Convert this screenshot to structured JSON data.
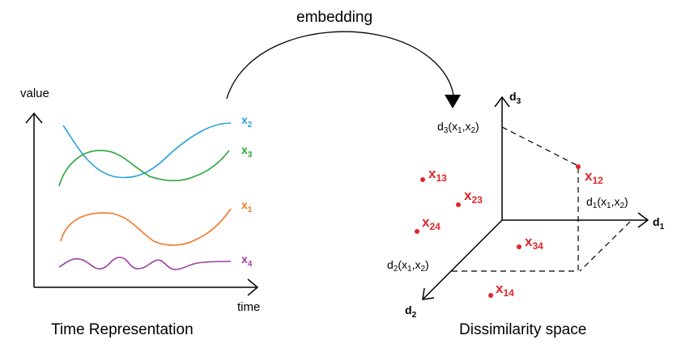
{
  "time_panel": {
    "y_axis_label": "value",
    "x_axis_label": "time",
    "caption": "Time Representation",
    "series": [
      {
        "name": "x",
        "sub": "2",
        "color": "#29a3dd"
      },
      {
        "name": "x",
        "sub": "3",
        "color": "#2aa63c"
      },
      {
        "name": "x",
        "sub": "1",
        "color": "#f4782a"
      },
      {
        "name": "x",
        "sub": "4",
        "color": "#9b3fa0"
      }
    ]
  },
  "arrow_label": "embedding",
  "space_panel": {
    "caption": "Dissimilarity space",
    "axes": [
      {
        "base": "d",
        "sub": "3"
      },
      {
        "base": "d",
        "sub": "1"
      },
      {
        "base": "d",
        "sub": "2"
      }
    ],
    "projection_labels": [
      {
        "dim": "3",
        "a": "1",
        "b": "2"
      },
      {
        "dim": "1",
        "a": "1",
        "b": "2"
      },
      {
        "dim": "2",
        "a": "1",
        "b": "2"
      }
    ],
    "point_color": "#e0262b",
    "points": [
      {
        "base": "x",
        "sub": "12"
      },
      {
        "base": "x",
        "sub": "13"
      },
      {
        "base": "x",
        "sub": "23"
      },
      {
        "base": "x",
        "sub": "24"
      },
      {
        "base": "x",
        "sub": "34"
      },
      {
        "base": "x",
        "sub": "14"
      }
    ]
  }
}
